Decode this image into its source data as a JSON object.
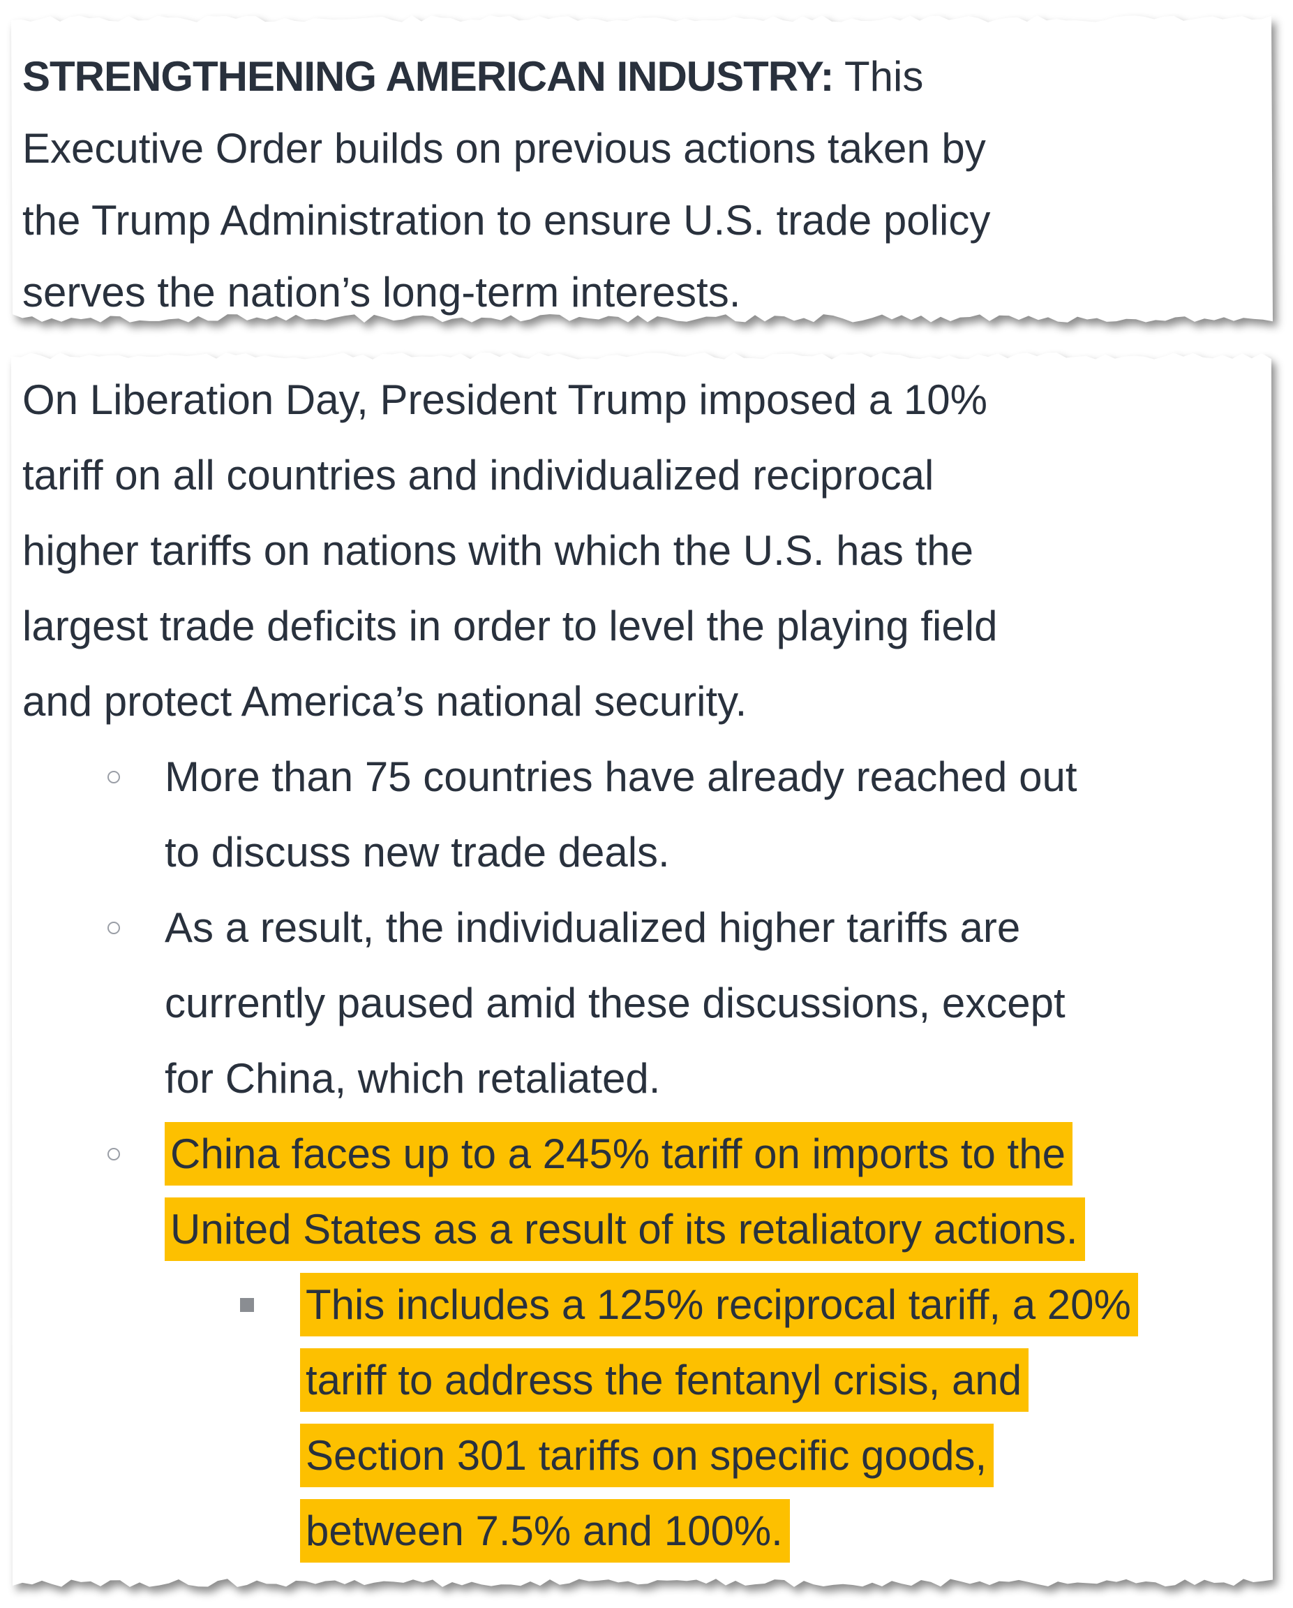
{
  "intro": {
    "heading": "STRENGTHENING AMERICAN INDUSTRY:",
    "lines": [
      "This",
      "Executive Order builds on previous actions taken by",
      "the Trump Administration to ensure U.S. trade policy",
      "serves the nation’s long-term interests."
    ]
  },
  "body": {
    "paragraph_lines": [
      "On Liberation Day, President Trump imposed a 10%",
      "tariff on all countries and individualized reciprocal",
      "higher tariffs on nations with which the U.S. has the",
      "largest trade deficits in order to level the playing field",
      "and protect America’s national security."
    ],
    "bullets": [
      {
        "lines": [
          "More than 75 countries have already reached out",
          "to discuss new trade deals."
        ]
      },
      {
        "lines": [
          "As a result, the individualized higher tariffs are",
          "currently paused amid these discussions, except",
          "for China, which retaliated."
        ]
      },
      {
        "lines": [
          "China faces up to a 245% tariff on imports to the",
          "United States as a result of its retaliatory actions."
        ],
        "highlighted": true
      }
    ],
    "sub_bullet": {
      "lines": [
        "This includes a 125% reciprocal tariff, a 20%",
        "tariff to address the fentanyl crisis, and",
        "Section 301 tariffs on specific goods,",
        "between 7.5% and 100%."
      ],
      "highlighted": true
    }
  },
  "colors": {
    "text": "#29313d",
    "highlight": "#fdc000",
    "bullet": "#9a9ea6"
  },
  "icons": {
    "bullet": "circle-bullet-icon",
    "sub_bullet": "square-bullet-icon"
  }
}
